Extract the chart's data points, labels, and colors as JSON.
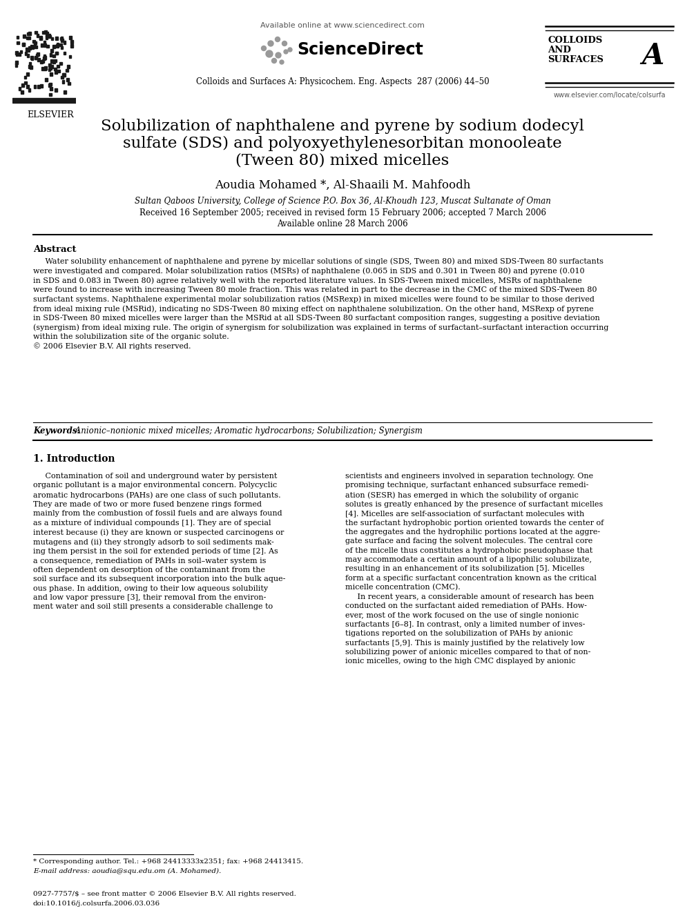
{
  "bg_color": "#ffffff",
  "header_available_online": "Available online at www.sciencedirect.com",
  "header_journal": "Colloids and Surfaces A: Physicochem. Eng. Aspects  287 (2006) 44–50",
  "header_elsevier": "ELSEVIER",
  "header_colloids1": "COLLOIDS",
  "header_colloids2": "AND",
  "header_colloids3": "SURFACES",
  "header_A": "A",
  "header_website": "www.elsevier.com/locate/colsurfa",
  "title_line1": "Solubilization of naphthalene and pyrene by sodium dodecyl",
  "title_line2": "sulfate (SDS) and polyoxyethylenesorbitan monooleate",
  "title_line3": "(Tween 80) mixed micelles",
  "authors": "Aoudia Mohamed *, Al-Shaaili M. Mahfoodh",
  "affiliation": "Sultan Qaboos University, College of Science P.O. Box 36, Al-Khoudh 123, Muscat Sultanate of Oman",
  "dates1": "Received 16 September 2005; received in revised form 15 February 2006; accepted 7 March 2006",
  "dates2": "Available online 28 March 2006",
  "abstract_title": "Abstract",
  "abstract_indent": "     Water solubility enhancement of naphthalene and pyrene by micellar solutions of single (SDS, Tween 80) and mixed SDS-Tween 80 surfactants\nwere investigated and compared. Molar solubilization ratios (MSRs) of naphthalene (0.065 in SDS and 0.301 in Tween 80) and pyrene (0.010\nin SDS and 0.083 in Tween 80) agree relatively well with the reported literature values. In SDS-Tween mixed micelles, MSRs of naphthalene\nwere found to increase with increasing Tween 80 mole fraction. This was related in part to the decrease in the CMC of the mixed SDS-Tween 80\nsurfactant systems. Naphthalene experimental molar solubilization ratios (MSRexp) in mixed micelles were found to be similar to those derived\nfrom ideal mixing rule (MSRid), indicating no SDS-Tween 80 mixing effect on naphthalene solubilization. On the other hand, MSRexp of pyrene\nin SDS-Tween 80 mixed micelles were larger than the MSRid at all SDS-Tween 80 surfactant composition ranges, suggesting a positive deviation\n(synergism) from ideal mixing rule. The origin of synergism for solubilization was explained in terms of surfactant–surfactant interaction occurring\nwithin the solubilization site of the organic solute.\n© 2006 Elsevier B.V. All rights reserved.",
  "keywords_label": "Keywords: ",
  "keywords_text": " Anionic–nonionic mixed micelles; Aromatic hydrocarbons; Solubilization; Synergism",
  "section1_title": "1. Introduction",
  "col1_para1": "     Contamination of soil and underground water by persistent\norganic pollutant is a major environmental concern. Polycyclic\naromatic hydrocarbons (PAHs) are one class of such pollutants.\nThey are made of two or more fused benzene rings formed\nmainly from the combustion of fossil fuels and are always found\nas a mixture of individual compounds [1]. They are of special\ninterest because (i) they are known or suspected carcinogens or\nmutagens and (ii) they strongly adsorb to soil sediments mak-\ning them persist in the soil for extended periods of time [2]. As\na consequence, remediation of PAHs in soil–water system is\noften dependent on desorption of the contaminant from the\nsoil surface and its subsequent incorporation into the bulk aque-\nous phase. In addition, owing to their low aqueous solubility\nand low vapor pressure [3], their removal from the environ-\nment water and soil still presents a considerable challenge to",
  "col2_para1": "scientists and engineers involved in separation technology. One\npromising technique, surfactant enhanced subsurface remedi-\nation (SESR) has emerged in which the solubility of organic\nsolutes is greatly enhanced by the presence of surfactant micelles\n[4]. Micelles are self-association of surfactant molecules with\nthe surfactant hydrophobic portion oriented towards the center of\nthe aggregates and the hydrophilic portions located at the aggre-\ngate surface and facing the solvent molecules. The central core\nof the micelle thus constitutes a hydrophobic pseudophase that\nmay accommodate a certain amount of a lipophilic solubilizate,\nresulting in an enhancement of its solubilization [5]. Micelles\nform at a specific surfactant concentration known as the critical\nmicelle concentration (CMC).\n     In recent years, a considerable amount of research has been\nconducted on the surfactant aided remediation of PAHs. How-\never, most of the work focused on the use of single nonionic\nsurfactants [6–8]. In contrast, only a limited number of inves-\ntigations reported on the solubilization of PAHs by anionic\nsurfactants [5,9]. This is mainly justified by the relatively low\nsolubilizing power of anionic micelles compared to that of non-\nionic micelles, owing to the high CMC displayed by anionic",
  "footnote_line": "* Corresponding author. Tel.: +968 24413333x2351; fax: +968 24413415.",
  "footnote_email": "E-mail address: aoudia@squ.edu.om (A. Mohamed).",
  "footer_issn": "0927-7757/$ – see front matter © 2006 Elsevier B.V. All rights reserved.",
  "footer_doi": "doi:10.1016/j.colsurfa.2006.03.036"
}
